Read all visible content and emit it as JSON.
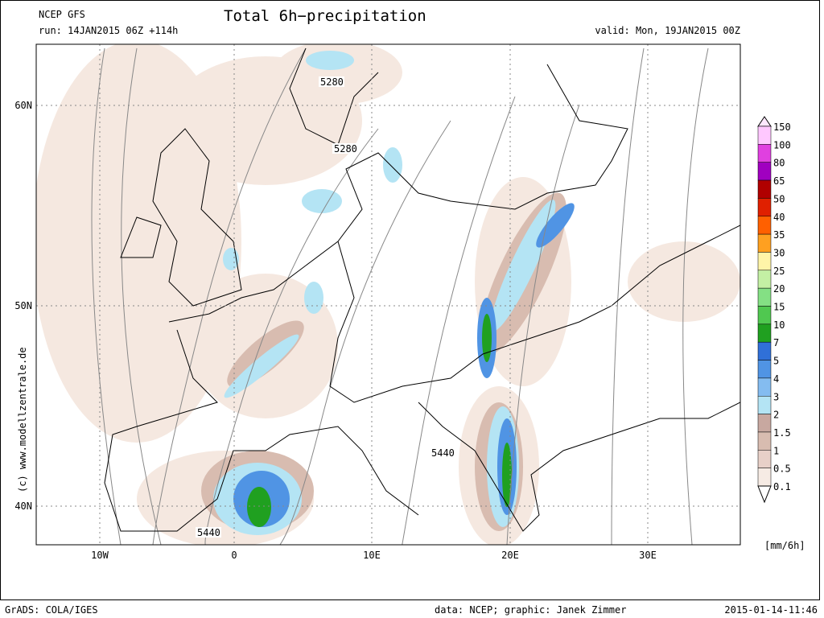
{
  "header": {
    "model": "NCEP GFS",
    "title": "Total 6h−precipitation",
    "run": "run: 14JAN2015 06Z +114h",
    "valid": "valid: Mon, 19JAN2015 00Z"
  },
  "map": {
    "lon_labels": [
      "10W",
      "0",
      "10E",
      "20E",
      "30E"
    ],
    "lat_labels": [
      "60N",
      "50N",
      "40N"
    ],
    "contour_labels": [
      "5280",
      "5280",
      "5440",
      "5440"
    ],
    "copyright": "(c) www.modellzentrale.de"
  },
  "colorbar": {
    "unit": "[mm/6h]",
    "levels": [
      "150",
      "100",
      "80",
      "65",
      "50",
      "40",
      "35",
      "30",
      "25",
      "20",
      "15",
      "10",
      "7",
      "5",
      "4",
      "3",
      "2",
      "1.5",
      "1",
      "0.5",
      "0.1"
    ],
    "colors": [
      "#ffc8ff",
      "#e040e0",
      "#a000c0",
      "#b00000",
      "#e02000",
      "#ff6000",
      "#ffa020",
      "#fff4a8",
      "#c4f0a4",
      "#84e084",
      "#50c850",
      "#20a020",
      "#3070d8",
      "#5094e4",
      "#84bcf0",
      "#b4e4f4",
      "#c8a8a0",
      "#d8bcb0",
      "#e8d0c8",
      "#f6ebe4"
    ]
  },
  "footer": {
    "left": "GrADS: COLA/IGES",
    "credit": "data: NCEP; graphic: Janek Zimmer",
    "date": "2015-01-14-11:46"
  }
}
